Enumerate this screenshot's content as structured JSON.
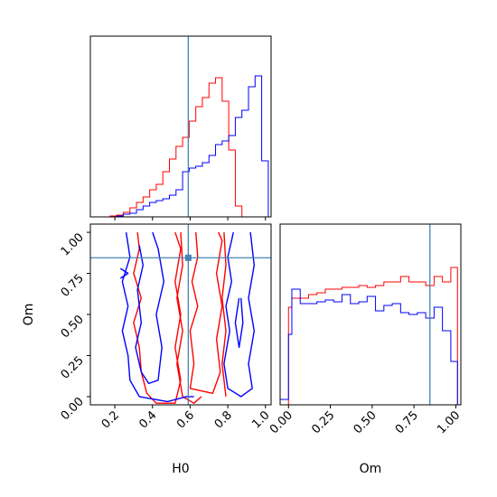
{
  "chart_data": {
    "type": "corner",
    "parameters": [
      "H0",
      "Om"
    ],
    "truth": {
      "H0": 0.59,
      "Om": 0.845
    },
    "colors": {
      "series_a": "#ff0000",
      "series_b": "#0000ff",
      "truth": "#4682b4"
    },
    "grid": false,
    "legend": "none",
    "panels": {
      "h0_hist": {
        "type": "histogram",
        "x": "H0",
        "xlim": [
          0.07,
          1.03
        ],
        "bins": [
          0.07,
          0.105,
          0.14,
          0.175,
          0.21,
          0.245,
          0.28,
          0.315,
          0.35,
          0.385,
          0.42,
          0.455,
          0.49,
          0.525,
          0.56,
          0.595,
          0.63,
          0.665,
          0.7,
          0.735,
          0.77,
          0.805,
          0.84,
          0.875,
          0.91,
          0.945,
          0.98,
          1.015
        ],
        "series": [
          {
            "color": "red",
            "values": [
              0,
              0,
              0,
              0.005,
              0.01,
              0.025,
              0.05,
              0.08,
              0.11,
              0.15,
              0.18,
              0.25,
              0.32,
              0.39,
              0.44,
              0.53,
              0.61,
              0.66,
              0.74,
              0.77,
              0.64,
              0.37,
              0.06,
              0,
              0,
              0,
              0
            ]
          },
          {
            "color": "blue",
            "values": [
              0,
              0,
              0,
              0,
              0.005,
              0.015,
              0.02,
              0.04,
              0.06,
              0.08,
              0.09,
              0.1,
              0.12,
              0.15,
              0.25,
              0.27,
              0.28,
              0.3,
              0.34,
              0.4,
              0.42,
              0.45,
              0.55,
              0.59,
              0.72,
              0.78,
              0.31
            ]
          }
        ]
      },
      "om_hist": {
        "type": "histogram",
        "x": "Om",
        "xlim": [
          -0.05,
          1.03
        ],
        "bins": [
          -0.05,
          0.0,
          0.02,
          0.07,
          0.12,
          0.17,
          0.22,
          0.27,
          0.32,
          0.37,
          0.42,
          0.47,
          0.52,
          0.57,
          0.62,
          0.67,
          0.72,
          0.77,
          0.82,
          0.87,
          0.92,
          0.97,
          1.01
        ],
        "series": [
          {
            "color": "red",
            "values": [
              0,
              0.54,
              0.59,
              0.59,
              0.61,
              0.62,
              0.64,
              0.64,
              0.65,
              0.65,
              0.66,
              0.65,
              0.66,
              0.68,
              0.68,
              0.71,
              0.68,
              0.68,
              0.66,
              0.71,
              0.68,
              0.76
            ]
          },
          {
            "color": "blue",
            "values": [
              0.03,
              0.39,
              0.64,
              0.56,
              0.56,
              0.57,
              0.58,
              0.57,
              0.61,
              0.56,
              0.57,
              0.6,
              0.52,
              0.55,
              0.56,
              0.51,
              0.5,
              0.51,
              0.48,
              0.54,
              0.41,
              0.24
            ]
          }
        ]
      },
      "h0_om_contour": {
        "type": "contour",
        "x": "H0",
        "y": "Om",
        "xlim": [
          0.07,
          1.03
        ],
        "ylim": [
          -0.05,
          1.05
        ],
        "series": [
          {
            "color": "red",
            "levels": [
              [
                [
                  0.32,
                  1.0
                ],
                [
                  0.33,
                  0.9
                ],
                [
                  0.3,
                  0.75
                ],
                [
                  0.34,
                  0.6
                ],
                [
                  0.3,
                  0.45
                ],
                [
                  0.33,
                  0.3
                ],
                [
                  0.34,
                  0.15
                ],
                [
                  0.37,
                  0.02
                ],
                [
                  0.42,
                  -0.04
                ],
                [
                  0.52,
                  -0.04
                ],
                [
                  0.55,
                  0.1
                ],
                [
                  0.52,
                  0.3
                ],
                [
                  0.55,
                  0.5
                ],
                [
                  0.52,
                  0.7
                ],
                [
                  0.55,
                  0.9
                ],
                [
                  0.52,
                  1.0
                ]
              ],
              [
                [
                  0.63,
                  1.0
                ],
                [
                  0.64,
                  0.85
                ],
                [
                  0.61,
                  0.7
                ],
                [
                  0.64,
                  0.55
                ],
                [
                  0.6,
                  0.4
                ],
                [
                  0.62,
                  0.2
                ],
                [
                  0.6,
                  0.05
                ],
                [
                  0.72,
                  0.02
                ],
                [
                  0.76,
                  0.15
                ],
                [
                  0.74,
                  0.35
                ],
                [
                  0.77,
                  0.55
                ],
                [
                  0.74,
                  0.75
                ],
                [
                  0.77,
                  0.95
                ],
                [
                  0.75,
                  1.0
                ]
              ],
              [
                [
                  0.55,
                  1.0
                ],
                [
                  0.56,
                  0.8
                ],
                [
                  0.53,
                  0.6
                ],
                [
                  0.56,
                  0.4
                ],
                [
                  0.53,
                  0.2
                ],
                [
                  0.56,
                  0.0
                ],
                [
                  0.62,
                  -0.04
                ],
                [
                  0.66,
                  0.0
                ]
              ],
              [
                [
                  0.78,
                  1.0
                ],
                [
                  0.79,
                  0.8
                ],
                [
                  0.77,
                  0.6
                ],
                [
                  0.79,
                  0.4
                ],
                [
                  0.77,
                  0.2
                ],
                [
                  0.79,
                  0.0
                ]
              ]
            ]
          },
          {
            "color": "blue",
            "levels": [
              [
                [
                  0.26,
                  1.0
                ],
                [
                  0.28,
                  0.85
                ],
                [
                  0.24,
                  0.7
                ],
                [
                  0.27,
                  0.55
                ],
                [
                  0.24,
                  0.4
                ],
                [
                  0.27,
                  0.25
                ],
                [
                  0.28,
                  0.1
                ],
                [
                  0.33,
                  0.0
                ],
                [
                  0.48,
                  -0.03
                ],
                [
                  0.58,
                  0.0
                ],
                [
                  0.62,
                  0.0
                ]
              ],
              [
                [
                  0.33,
                  0.92
                ],
                [
                  0.35,
                  0.8
                ],
                [
                  0.32,
                  0.65
                ],
                [
                  0.34,
                  0.45
                ],
                [
                  0.31,
                  0.3
                ],
                [
                  0.34,
                  0.15
                ],
                [
                  0.38,
                  0.08
                ],
                [
                  0.43,
                  0.1
                ],
                [
                  0.45,
                  0.3
                ],
                [
                  0.42,
                  0.5
                ],
                [
                  0.46,
                  0.7
                ],
                [
                  0.43,
                  0.9
                ],
                [
                  0.4,
                  1.0
                ]
              ],
              [
                [
                  0.83,
                  1.0
                ],
                [
                  0.8,
                  0.85
                ],
                [
                  0.82,
                  0.7
                ],
                [
                  0.79,
                  0.55
                ],
                [
                  0.81,
                  0.4
                ],
                [
                  0.78,
                  0.2
                ],
                [
                  0.8,
                  0.05
                ],
                [
                  0.87,
                  0.0
                ],
                [
                  0.93,
                  0.05
                ],
                [
                  0.91,
                  0.2
                ],
                [
                  0.94,
                  0.4
                ],
                [
                  0.91,
                  0.6
                ],
                [
                  0.94,
                  0.8
                ],
                [
                  0.92,
                  1.0
                ]
              ],
              [
                [
                  0.86,
                  0.6
                ],
                [
                  0.84,
                  0.45
                ],
                [
                  0.86,
                  0.3
                ],
                [
                  0.88,
                  0.45
                ],
                [
                  0.87,
                  0.6
                ]
              ],
              [
                [
                  0.23,
                  0.78
                ],
                [
                  0.27,
                  0.75
                ],
                [
                  0.23,
                  0.72
                ]
              ]
            ]
          }
        ]
      }
    },
    "axes": {
      "h0": {
        "label": "H0",
        "ticks": [
          "0.2",
          "0.4",
          "0.6",
          "0.8",
          "1.0"
        ],
        "tick_values": [
          0.2,
          0.4,
          0.6,
          0.8,
          1.0
        ]
      },
      "om_x": {
        "label": "Om",
        "ticks": [
          "0.00",
          "0.25",
          "0.50",
          "0.75",
          "1.00"
        ],
        "tick_values": [
          0.0,
          0.25,
          0.5,
          0.75,
          1.0
        ]
      },
      "om_y": {
        "label": "Om",
        "ticks": [
          "0.00",
          "0.25",
          "0.50",
          "0.75",
          "1.00"
        ],
        "tick_values": [
          0.0,
          0.25,
          0.5,
          0.75,
          1.0
        ]
      }
    }
  }
}
